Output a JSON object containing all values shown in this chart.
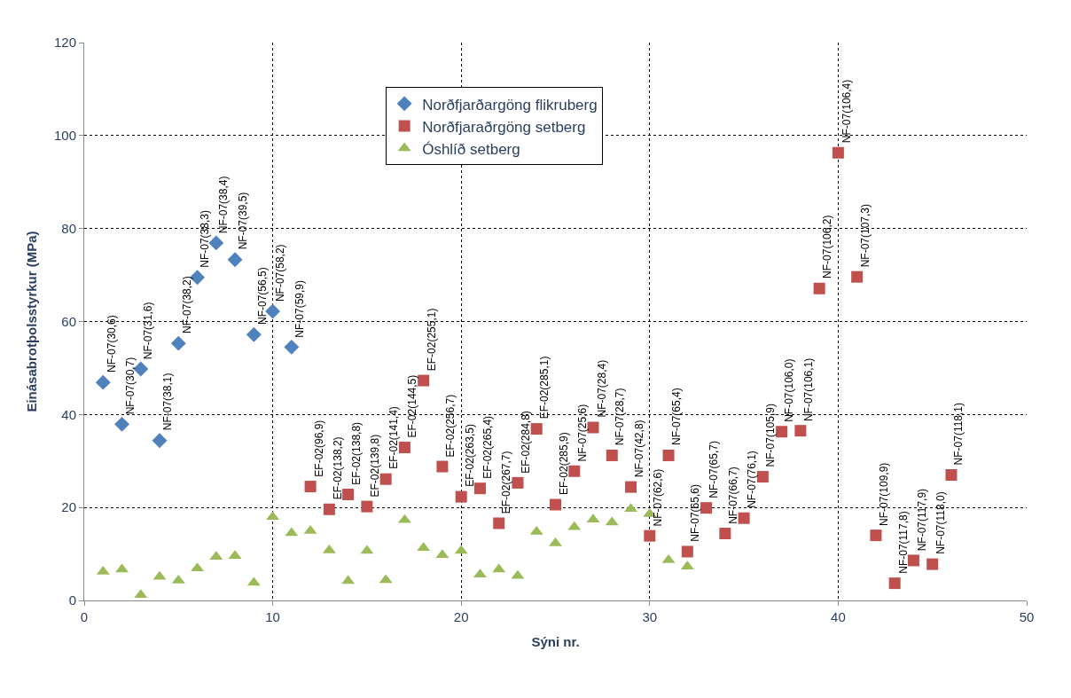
{
  "chart_data": {
    "type": "scatter",
    "xlabel": "Sýni nr.",
    "ylabel": "Einásabrotþolsstyrkur (MPa)",
    "xlim": [
      0,
      50
    ],
    "xticks": [
      0,
      10,
      20,
      30,
      40,
      50
    ],
    "ylim": [
      0,
      120
    ],
    "yticks": [
      0,
      20,
      40,
      60,
      80,
      100,
      120
    ],
    "grid": true,
    "legend": "top",
    "series": [
      {
        "name": "Norðfjarðargöng flikruberg",
        "color": "#4f81bd",
        "marker": "diamond",
        "x": [
          1,
          2,
          3,
          4,
          5,
          6,
          7,
          8,
          9,
          10,
          11
        ],
        "values": [
          46.9,
          37.9,
          49.8,
          34.4,
          55.3,
          69.5,
          76.9,
          73.3,
          57.2,
          62.2,
          54.5
        ]
      },
      {
        "name": "Norðfjaraðrgöng setberg",
        "color": "#c0504d",
        "marker": "square",
        "x": [
          12,
          13,
          14,
          15,
          16,
          17,
          18,
          19,
          20,
          21,
          22,
          23,
          24,
          25,
          26,
          27,
          28,
          29,
          30,
          31,
          32,
          33,
          34,
          35,
          36,
          37,
          38,
          39,
          40,
          41,
          42,
          43,
          44,
          45,
          46
        ],
        "values": [
          24.5,
          19.6,
          22.8,
          20.2,
          26.1,
          32.9,
          47.3,
          28.8,
          22.3,
          24.1,
          16.6,
          25.3,
          36.9,
          20.6,
          27.8,
          37.2,
          31.2,
          24.4,
          13.9,
          31.2,
          10.5,
          19.9,
          14.4,
          17.7,
          26.6,
          36.3,
          36.5,
          67.1,
          96.3,
          69.6,
          14.0,
          3.7,
          8.6,
          7.8,
          27.0
        ]
      },
      {
        "name": "Óshlíð setberg",
        "color": "#9bbb59",
        "marker": "triangle",
        "x": [
          1,
          2,
          3,
          4,
          5,
          6,
          7,
          8,
          9,
          10,
          11,
          12,
          13,
          14,
          15,
          16,
          17,
          18,
          19,
          20,
          21,
          22,
          23,
          24,
          25,
          26,
          27,
          28,
          29,
          30,
          31,
          32
        ],
        "values": [
          6.2,
          6.7,
          1.2,
          5.1,
          4.3,
          6.9,
          9.4,
          9.6,
          3.8,
          18.0,
          14.5,
          15.0,
          10.8,
          4.2,
          10.7,
          4.4,
          17.3,
          11.3,
          9.8,
          10.7,
          5.6,
          6.7,
          5.3,
          14.8,
          12.3,
          15.8,
          17.4,
          16.8,
          19.7,
          18.6,
          8.7,
          7.3
        ]
      }
    ],
    "annotations": [
      {
        "text": "NF-07(30,6)",
        "x": 1,
        "y": 46.9
      },
      {
        "text": "NF-07(30,7)",
        "x": 2,
        "y": 37.9
      },
      {
        "text": "NF-07(31,6)",
        "x": 3,
        "y": 49.8
      },
      {
        "text": "NF-07(38,1)",
        "x": 4,
        "y": 34.4
      },
      {
        "text": "NF-07(38,2)",
        "x": 5,
        "y": 55.3
      },
      {
        "text": "NF-07(38,3)",
        "x": 6,
        "y": 69.5
      },
      {
        "text": "NF-07(38,4)",
        "x": 7,
        "y": 76.9
      },
      {
        "text": "NF-07(39,5)",
        "x": 8,
        "y": 73.3
      },
      {
        "text": "NF-07(56,5)",
        "x": 9,
        "y": 57.2
      },
      {
        "text": "NF-07(58,2)",
        "x": 10,
        "y": 62.2
      },
      {
        "text": "NF-07(59,9)",
        "x": 11,
        "y": 54.5
      },
      {
        "text": "EF-02(96,9)",
        "x": 12,
        "y": 24.5
      },
      {
        "text": "EF-02(138,2)",
        "x": 13,
        "y": 19.6
      },
      {
        "text": "EF-02(138,8)",
        "x": 14,
        "y": 22.8
      },
      {
        "text": "EF-02(139,8)",
        "x": 15,
        "y": 20.2
      },
      {
        "text": "EF-02(141,4)",
        "x": 16,
        "y": 26.1
      },
      {
        "text": "EF-02(144,5)",
        "x": 17,
        "y": 32.9
      },
      {
        "text": "EF-02(255,1)",
        "x": 18,
        "y": 47.3
      },
      {
        "text": "EF-02(256,7)",
        "x": 19,
        "y": 28.8
      },
      {
        "text": "EF-02(263,5)",
        "x": 20,
        "y": 22.3
      },
      {
        "text": "EF-02(265,4)",
        "x": 21,
        "y": 24.1
      },
      {
        "text": "EF-02(267,7)",
        "x": 22,
        "y": 16.6
      },
      {
        "text": "EF-02(284,8)",
        "x": 23,
        "y": 25.3
      },
      {
        "text": "EF-02(285,1)",
        "x": 24,
        "y": 36.9
      },
      {
        "text": "EF-02(285,9)",
        "x": 25,
        "y": 20.6
      },
      {
        "text": "NF-07(25,6)",
        "x": 26,
        "y": 27.8
      },
      {
        "text": "NF-07(28,4)",
        "x": 27,
        "y": 37.2
      },
      {
        "text": "NF-07(28,7)",
        "x": 28,
        "y": 31.2
      },
      {
        "text": "NF-07(42,8)",
        "x": 29,
        "y": 24.4
      },
      {
        "text": "NF-07(62,6)",
        "x": 30,
        "y": 13.9
      },
      {
        "text": "NF-07(65,4)",
        "x": 31,
        "y": 31.2
      },
      {
        "text": "NF-07(65,6)",
        "x": 32,
        "y": 10.5
      },
      {
        "text": "NF-07(65,7)",
        "x": 33,
        "y": 19.9
      },
      {
        "text": "NF-07(66,7)",
        "x": 34,
        "y": 14.4
      },
      {
        "text": "NF-07(76,1)",
        "x": 35,
        "y": 17.7
      },
      {
        "text": "NF-07(105,9)",
        "x": 36,
        "y": 26.6
      },
      {
        "text": "NF-07(106,0)",
        "x": 37,
        "y": 36.3
      },
      {
        "text": "NF-07(106,1)",
        "x": 38,
        "y": 36.5
      },
      {
        "text": "NF-07(106,2)",
        "x": 39,
        "y": 67.1
      },
      {
        "text": "NF-07(106,4)",
        "x": 40,
        "y": 96.3
      },
      {
        "text": "NF-07(107,3)",
        "x": 41,
        "y": 69.6
      },
      {
        "text": "NF-07(109,9)",
        "x": 42,
        "y": 14.0
      },
      {
        "text": "NF-07(117,8)",
        "x": 43,
        "y": 3.7
      },
      {
        "text": "NF-07(117,9)",
        "x": 44,
        "y": 8.6
      },
      {
        "text": "NF-07(118,0)",
        "x": 45,
        "y": 7.8
      },
      {
        "text": "NF-07(118,1)",
        "x": 46,
        "y": 27.0
      }
    ]
  }
}
